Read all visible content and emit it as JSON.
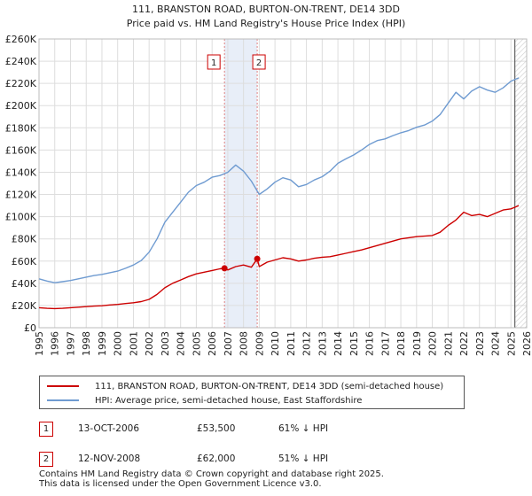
{
  "chart_data": {
    "type": "line",
    "title": "111, BRANSTON ROAD, BURTON-ON-TRENT, DE14 3DD",
    "subtitle": "Price paid vs. HM Land Registry's House Price Index (HPI)",
    "xlim": [
      1995,
      2026
    ],
    "ylim": [
      0,
      260000
    ],
    "x_ticks": [
      1995,
      1996,
      1997,
      1998,
      1999,
      2000,
      2001,
      2002,
      2003,
      2004,
      2005,
      2006,
      2007,
      2008,
      2009,
      2010,
      2011,
      2012,
      2013,
      2014,
      2015,
      2016,
      2017,
      2018,
      2019,
      2020,
      2021,
      2022,
      2023,
      2024,
      2025,
      2026
    ],
    "y_ticks": [
      {
        "value": 0,
        "label": "£0"
      },
      {
        "value": 20000,
        "label": "£20K"
      },
      {
        "value": 40000,
        "label": "£40K"
      },
      {
        "value": 60000,
        "label": "£60K"
      },
      {
        "value": 80000,
        "label": "£80K"
      },
      {
        "value": 100000,
        "label": "£100K"
      },
      {
        "value": 120000,
        "label": "£120K"
      },
      {
        "value": 140000,
        "label": "£140K"
      },
      {
        "value": 160000,
        "label": "£160K"
      },
      {
        "value": 180000,
        "label": "£180K"
      },
      {
        "value": 200000,
        "label": "£200K"
      },
      {
        "value": 220000,
        "label": "£220K"
      },
      {
        "value": 240000,
        "label": "£240K"
      },
      {
        "value": 260000,
        "label": "£260K"
      }
    ],
    "series": [
      {
        "name": "111, BRANSTON ROAD, BURTON-ON-TRENT, DE14 3DD (semi-detached house)",
        "color": "#cc0000",
        "x": [
          1995.0,
          1995.5,
          1996.0,
          1996.5,
          1997.0,
          1997.5,
          1998.0,
          1998.5,
          1999.0,
          1999.5,
          2000.0,
          2000.5,
          2001.0,
          2001.5,
          2002.0,
          2002.5,
          2003.0,
          2003.5,
          2004.0,
          2004.5,
          2005.0,
          2005.5,
          2006.0,
          2006.5,
          2006.79,
          2007.0,
          2007.5,
          2008.0,
          2008.5,
          2008.87,
          2009.0,
          2009.5,
          2010.0,
          2010.5,
          2011.0,
          2011.5,
          2012.0,
          2012.5,
          2013.0,
          2013.5,
          2014.0,
          2014.5,
          2015.0,
          2015.5,
          2016.0,
          2016.5,
          2017.0,
          2017.5,
          2018.0,
          2018.5,
          2019.0,
          2019.5,
          2020.0,
          2020.5,
          2021.0,
          2021.5,
          2022.0,
          2022.5,
          2023.0,
          2023.5,
          2024.0,
          2024.5,
          2025.0,
          2025.5
        ],
        "values": [
          18000,
          17500,
          17200,
          17500,
          18000,
          18500,
          19000,
          19500,
          19800,
          20500,
          21000,
          21800,
          22500,
          23500,
          25500,
          30000,
          36000,
          40000,
          43000,
          46000,
          48500,
          50000,
          51500,
          53000,
          53500,
          52000,
          55000,
          56500,
          54500,
          62000,
          55000,
          59000,
          61000,
          63000,
          62000,
          60000,
          61000,
          62500,
          63500,
          64000,
          65500,
          67000,
          68500,
          70000,
          72000,
          74000,
          76000,
          78000,
          80000,
          81000,
          82000,
          82500,
          83000,
          86000,
          92000,
          97000,
          104000,
          101000,
          102000,
          100000,
          103000,
          106000,
          107000,
          110000
        ]
      },
      {
        "name": "HPI: Average price, semi-detached house, East Staffordshire",
        "color": "#6f9bd1",
        "x": [
          1995.0,
          1995.5,
          1996.0,
          1996.5,
          1997.0,
          1997.5,
          1998.0,
          1998.5,
          1999.0,
          1999.5,
          2000.0,
          2000.5,
          2001.0,
          2001.5,
          2002.0,
          2002.5,
          2003.0,
          2003.5,
          2004.0,
          2004.5,
          2005.0,
          2005.5,
          2006.0,
          2006.5,
          2007.0,
          2007.5,
          2008.0,
          2008.5,
          2009.0,
          2009.5,
          2010.0,
          2010.5,
          2011.0,
          2011.5,
          2012.0,
          2012.5,
          2013.0,
          2013.5,
          2014.0,
          2014.5,
          2015.0,
          2015.5,
          2016.0,
          2016.5,
          2017.0,
          2017.5,
          2018.0,
          2018.5,
          2019.0,
          2019.5,
          2020.0,
          2020.5,
          2021.0,
          2021.5,
          2022.0,
          2022.5,
          2023.0,
          2023.5,
          2024.0,
          2024.5,
          2025.0,
          2025.5
        ],
        "values": [
          44000,
          42000,
          40500,
          41500,
          42500,
          44000,
          45500,
          47000,
          48000,
          49500,
          51000,
          53500,
          56500,
          60500,
          68000,
          80000,
          95000,
          104000,
          113000,
          122000,
          128000,
          131000,
          135500,
          137000,
          140000,
          146500,
          141000,
          132000,
          120000,
          125000,
          131000,
          135000,
          133000,
          127000,
          129000,
          133000,
          136000,
          141000,
          148000,
          152000,
          155500,
          160000,
          165000,
          168500,
          170000,
          173000,
          175500,
          177500,
          180500,
          182500,
          186000,
          192000,
          202000,
          212000,
          206000,
          213000,
          217000,
          214000,
          212000,
          216000,
          222000,
          225000
        ]
      }
    ],
    "transactions": [
      {
        "n": "1",
        "x": 2006.79,
        "value": 53500
      },
      {
        "n": "2",
        "x": 2008.87,
        "value": 62000
      }
    ],
    "highlight_band": [
      2006.79,
      2008.87
    ],
    "forecast_start": 2025.25
  },
  "legend": {
    "price_label": "111, BRANSTON ROAD, BURTON-ON-TRENT, DE14 3DD (semi-detached house)",
    "hpi_label": "HPI: Average price, semi-detached house, East Staffordshire",
    "price_color": "#cc0000",
    "hpi_color": "#6f9bd1"
  },
  "table": [
    {
      "n": "1",
      "date": "13-OCT-2006",
      "price": "£53,500",
      "hpi": "61% ↓ HPI"
    },
    {
      "n": "2",
      "date": "12-NOV-2008",
      "price": "£62,000",
      "hpi": "51% ↓ HPI"
    }
  ],
  "footer": {
    "line1": "Contains HM Land Registry data © Crown copyright and database right 2025.",
    "line2": "This data is licensed under the Open Government Licence v3.0."
  }
}
